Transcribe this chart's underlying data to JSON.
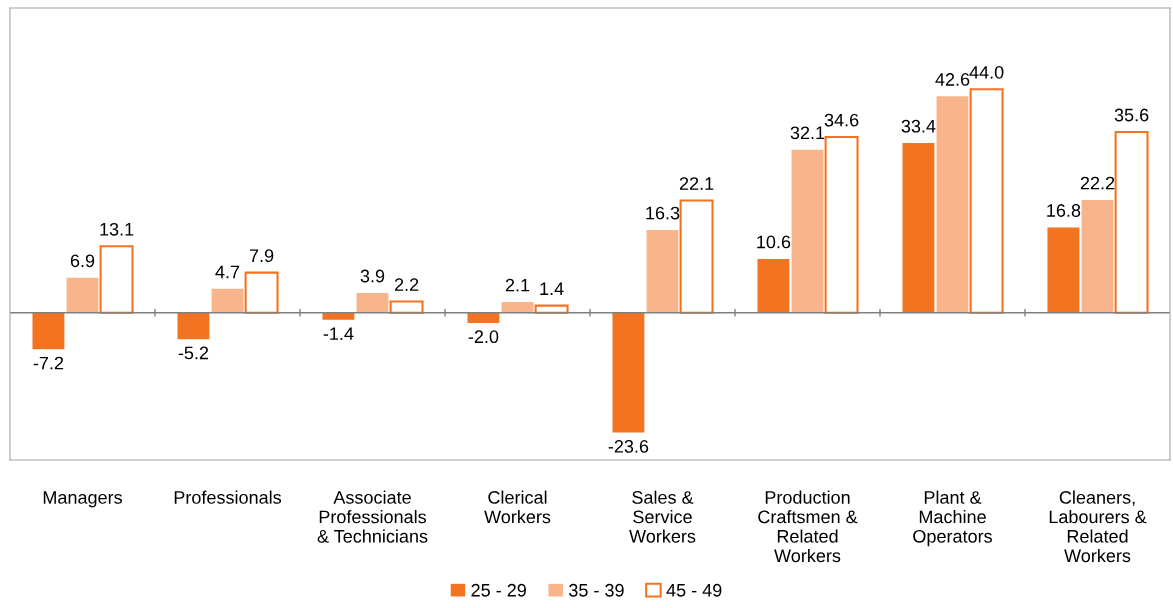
{
  "chart_data": {
    "type": "bar",
    "categories": [
      "Managers",
      "Professionals",
      "Associate\nProfessionals\n& Technicians",
      "Clerical\nWorkers",
      "Sales &\nService\nWorkers",
      "Production\nCraftsmen &\nRelated\nWorkers",
      "Plant &\nMachine\nOperators",
      "Cleaners,\nLabourers &\nRelated\nWorkers"
    ],
    "series": [
      {
        "name": "25 - 29",
        "color": "#f47321",
        "values": [
          -7.2,
          -5.2,
          -1.4,
          -2.0,
          -23.6,
          10.6,
          33.4,
          16.8
        ],
        "value_labels": [
          "-7.2",
          "-5.2",
          "-1.4",
          "-2.0",
          "-23.6",
          "10.6",
          "33.4",
          "16.8"
        ]
      },
      {
        "name": "35 - 39",
        "color": "#f8b48a",
        "values": [
          6.9,
          4.7,
          3.9,
          2.1,
          16.3,
          32.1,
          42.6,
          22.2
        ],
        "value_labels": [
          "6.9",
          "4.7",
          "3.9",
          "2.1",
          "16.3",
          "32.1",
          "42.6",
          "22.2"
        ]
      },
      {
        "name": "45 - 49",
        "color": "#ffffff",
        "values": [
          13.1,
          7.9,
          2.2,
          1.4,
          22.1,
          34.6,
          44.0,
          35.6
        ],
        "value_labels": [
          "13.1",
          "7.9",
          "2.2",
          "1.4",
          "22.1",
          "34.6",
          "44.0",
          "35.6"
        ]
      }
    ],
    "ylim": [
      -29,
      60
    ],
    "legend": "bottom",
    "tick_labels": "x",
    "grid": false
  }
}
